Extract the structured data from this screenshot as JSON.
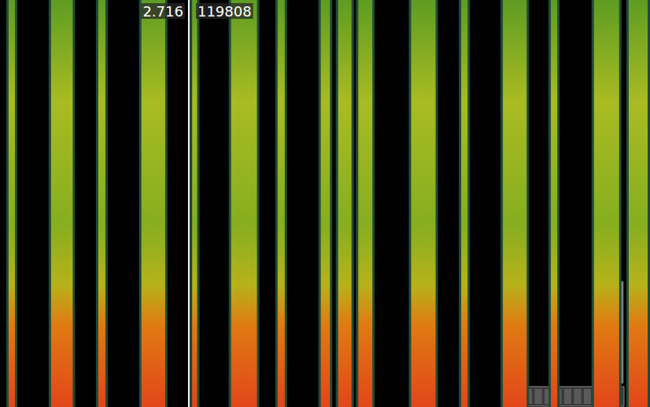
{
  "chart_data": {
    "type": "spectrogram",
    "xlim": [
      0,
      9.35
    ],
    "tick_labels": false,
    "grid": false,
    "events": {
      "start": [
        0.09,
        0.7,
        1.38,
        2.0,
        2.73,
        3.29,
        3.96,
        4.58,
        4.83,
        5.12,
        5.88,
        6.6,
        7.2,
        7.89,
        8.51,
        9.01
      ],
      "end": [
        0.25,
        1.08,
        1.55,
        2.41,
        2.87,
        3.73,
        4.13,
        4.78,
        5.09,
        5.39,
        6.3,
        6.76,
        7.61,
        8.05,
        8.94,
        9.35
      ]
    },
    "cursor": {
      "x": 2.716,
      "sample": 119808
    }
  }
}
